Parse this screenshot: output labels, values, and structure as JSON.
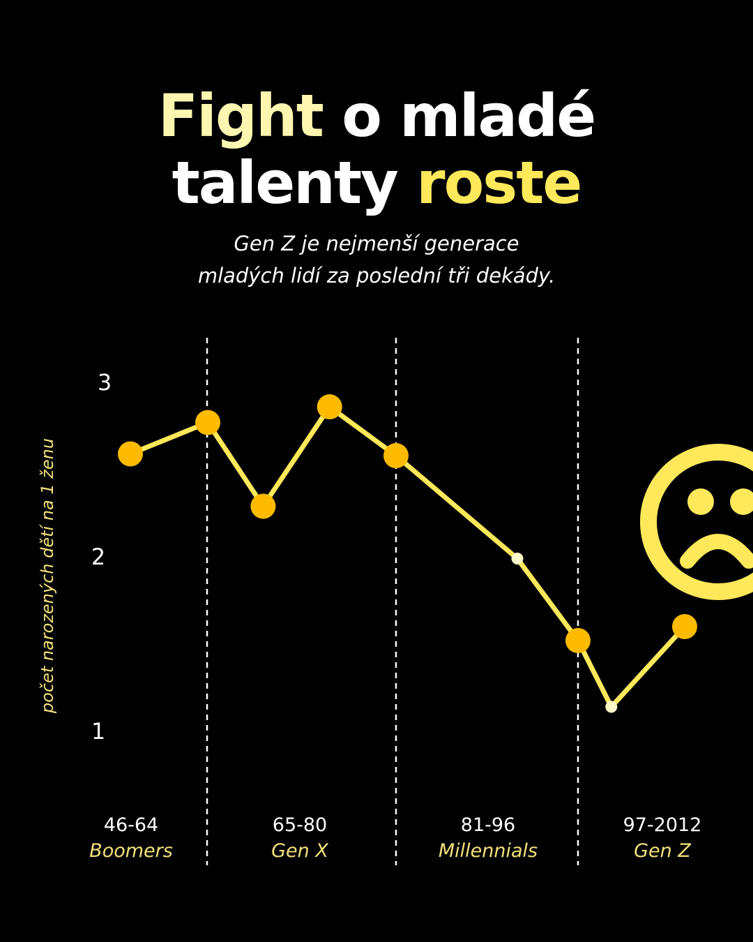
{
  "title": {
    "line1": [
      {
        "text": "Fight",
        "color": "#fdf6b0"
      },
      {
        "text": " o mladé",
        "color": "#ffffff"
      }
    ],
    "line2": [
      {
        "text": "talenty ",
        "color": "#ffffff"
      },
      {
        "text": "roste",
        "color": "#ffe95a"
      }
    ]
  },
  "subtitle": {
    "line1": "Gen Z je nejmenší generace",
    "line2": "mladých lidí za poslední tři dekády."
  },
  "colors": {
    "background": "#000000",
    "line": "#ffe95a",
    "marker": "#ffbb00",
    "small_marker": "#fff8c8",
    "divider": "#ffffff",
    "sad_face": "#ffe95a"
  },
  "decor": {
    "icon": "sad-face-icon"
  },
  "chart_data": {
    "type": "line",
    "ylabel": "počet narozených dětí na 1 ženu",
    "ylim": [
      1,
      3
    ],
    "yticks": [
      1,
      2,
      3
    ],
    "grid": false,
    "legend": "none",
    "series": [
      {
        "values": [
          {
            "x": 1946,
            "y": 2.59,
            "marker": "large"
          },
          {
            "x": 1964,
            "y": 2.77,
            "marker": "large"
          },
          {
            "x": 1969,
            "y": 2.29,
            "marker": "large"
          },
          {
            "x": 1975,
            "y": 2.86,
            "marker": "large"
          },
          {
            "x": 1981,
            "y": 2.58,
            "marker": "large"
          },
          {
            "x": 1991,
            "y": 1.99,
            "marker": "small"
          },
          {
            "x": 1996,
            "y": 1.52,
            "marker": "large"
          },
          {
            "x": 2001,
            "y": 1.14,
            "marker": "small"
          },
          {
            "x": 2012,
            "y": 1.6,
            "marker": "large"
          }
        ]
      }
    ],
    "periods": [
      {
        "range": "46-64",
        "name": "Boomers"
      },
      {
        "range": "65-80",
        "name": "Gen X"
      },
      {
        "range": "81-96",
        "name": "Millennials"
      },
      {
        "range": "97-2012",
        "name": "Gen Z"
      }
    ]
  }
}
